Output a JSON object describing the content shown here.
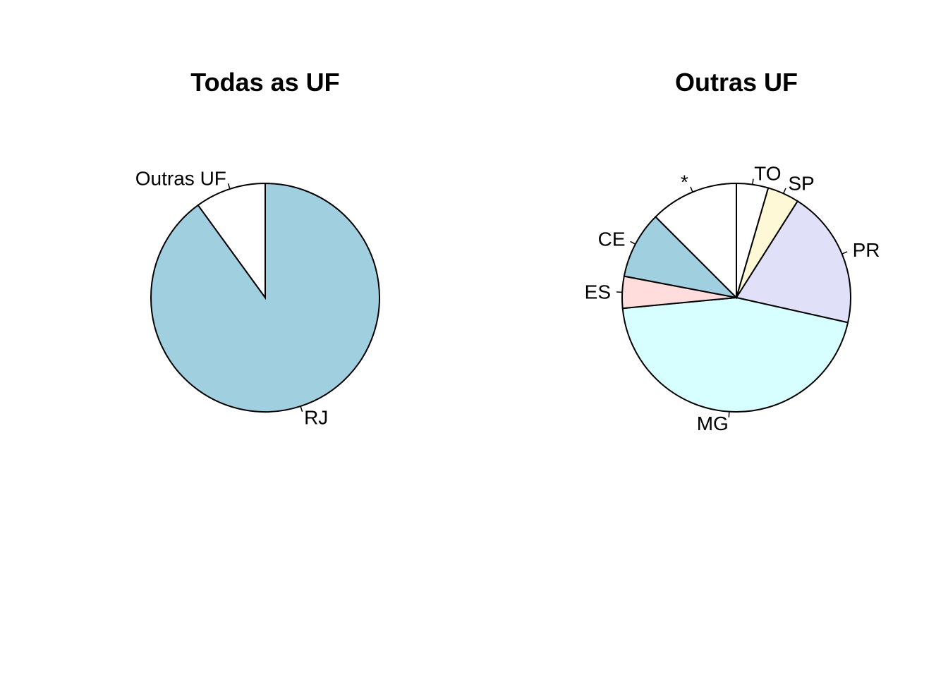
{
  "chart_data": [
    {
      "type": "pie",
      "title": "Todas as UF",
      "start": "top",
      "direction": "clockwise",
      "slices": [
        {
          "label": "RJ",
          "value": 90.0,
          "color": "#a0cfe0"
        },
        {
          "label": "Outras UF",
          "value": 10.0,
          "color": "#ffffff"
        }
      ]
    },
    {
      "type": "pie",
      "title": "Outras UF",
      "start": "top",
      "direction": "clockwise",
      "slices": [
        {
          "label": "TO",
          "value": 4.5,
          "color": "#ffffff"
        },
        {
          "label": "SP",
          "value": 4.5,
          "color": "#fff8d6"
        },
        {
          "label": "PR",
          "value": 19.5,
          "color": "#e0e0f8"
        },
        {
          "label": "MG",
          "value": 45.0,
          "color": "#d8ffff"
        },
        {
          "label": "ES",
          "value": 4.5,
          "color": "#ffdddd"
        },
        {
          "label": "CE",
          "value": 9.5,
          "color": "#a0cfe0"
        },
        {
          "label": "*",
          "value": 12.5,
          "color": "#ffffff"
        }
      ]
    }
  ]
}
